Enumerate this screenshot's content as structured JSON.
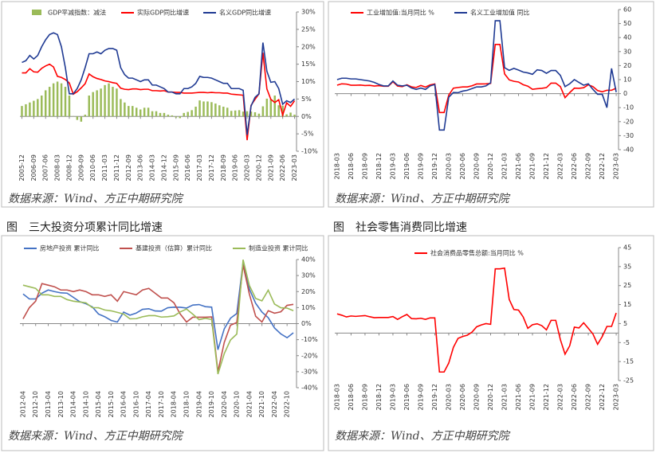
{
  "chart_data": [
    {
      "type": "combo",
      "source": "数据来源：Wind、方正中期研究院",
      "categories": [
        "2005-12",
        null,
        null,
        "2006-09",
        null,
        null,
        "2007-06",
        null,
        null,
        "2008-03",
        null,
        null,
        "2008-12",
        null,
        null,
        "2009-09",
        null,
        null,
        "2010-06",
        null,
        null,
        "2011-03",
        null,
        null,
        "2011-12",
        null,
        null,
        "2012-09",
        null,
        null,
        "2013-06",
        null,
        null,
        "2014-03",
        null,
        null,
        "2014-12",
        null,
        null,
        "2015-09",
        null,
        null,
        "2016-06",
        null,
        null,
        "2017-03",
        null,
        null,
        "2017-12",
        null,
        null,
        "2018-09",
        null,
        null,
        "2019-06",
        null,
        null,
        "2020-03",
        null,
        null,
        "2020-12",
        null,
        null,
        "2021-09",
        null,
        null,
        "2022-06",
        null,
        null,
        "2023-03"
      ],
      "ylim": [
        -10,
        30
      ],
      "yticks": [
        {
          "value": -10,
          "label": "-10%"
        },
        {
          "value": -5,
          "label": "-5%"
        },
        {
          "value": 0,
          "label": "0%"
        },
        {
          "value": 5,
          "label": "5%"
        },
        {
          "value": 10,
          "label": "10%"
        },
        {
          "value": 15,
          "label": "15%"
        },
        {
          "value": 20,
          "label": "20%"
        },
        {
          "value": 25,
          "label": "25%"
        },
        {
          "value": 30,
          "label": "30%"
        }
      ],
      "series": [
        {
          "name": "GDP平减指数：减法",
          "type": "bar",
          "color": "#9BBB59",
          "values": [
            3,
            3.5,
            4,
            4.5,
            5,
            6,
            7.5,
            8.5,
            9.5,
            10,
            9.5,
            8.5,
            6,
            0.1,
            -1,
            -1.5,
            0.5,
            6,
            7,
            7.5,
            8,
            9,
            9.5,
            8.5,
            8,
            5,
            4,
            3,
            3,
            2.5,
            2,
            2.5,
            2.5,
            1.5,
            1.5,
            1,
            1,
            0.5,
            0.3,
            -0.3,
            -0.5,
            1,
            1.3,
            1.8,
            2.8,
            4.6,
            4.3,
            4.3,
            4.1,
            3.7,
            3.2,
            2.8,
            2.5,
            1.6,
            1.7,
            1.8,
            1.4,
            1.5,
            1.4,
            1.2,
            0.8,
            2.9,
            5.1,
            4.9,
            6,
            3.2,
            3.1,
            0.6,
            1.1,
            0.5
          ]
        },
        {
          "name": "实际GDP同比增速",
          "type": "line",
          "color": "#FF0000",
          "values": [
            12.5,
            12.5,
            13.7,
            12.8,
            12.7,
            13.8,
            14.5,
            15,
            14.2,
            11.5,
            11.2,
            10.6,
            9.6,
            6.4,
            7.1,
            8.2,
            9.4,
            12.2,
            11.4,
            10.9,
            10.6,
            10.2,
            10,
            9.7,
            9.5,
            8.1,
            7.8,
            7.7,
            7.9,
            7.9,
            7.7,
            7.8,
            7.8,
            7.4,
            7.4,
            7.3,
            7.4,
            7,
            7,
            6.9,
            6.9,
            6.7,
            6.7,
            6.7,
            6.8,
            6.9,
            6.9,
            6.8,
            6.9,
            6.8,
            6.8,
            6.7,
            6.7,
            6.4,
            6.3,
            6.2,
            6.1,
            -6.8,
            3.2,
            4.9,
            6.5,
            18.3,
            7.9,
            4.9,
            4,
            4.8,
            0.4,
            3.9,
            2.9,
            4.5
          ]
        },
        {
          "name": "名义GDP同比增速",
          "type": "line",
          "color": "#1F3A93",
          "values": [
            15.5,
            16,
            17.5,
            16.5,
            17.5,
            20,
            22,
            23.5,
            24,
            23.5,
            20,
            14,
            6.5,
            6.5,
            8,
            10.5,
            14,
            18,
            18,
            18.5,
            18,
            19,
            19.5,
            19.5,
            19,
            14,
            12,
            11,
            11,
            10.5,
            10,
            10.5,
            10.5,
            9,
            9,
            8.5,
            8,
            7,
            7,
            6.5,
            6.5,
            8,
            8,
            8.5,
            9.5,
            11.5,
            11.2,
            11.2,
            11,
            10.5,
            10,
            9.5,
            9.5,
            8,
            8,
            8,
            7.5,
            -5.3,
            3,
            5.5,
            6.5,
            21.2,
            13,
            9.8,
            10,
            8,
            3.5,
            4.5,
            4,
            5
          ]
        }
      ]
    },
    {
      "type": "line",
      "source": "数据来源：Wind、方正中期研究院",
      "categories": [
        "2018-03",
        null,
        null,
        "2018-06",
        null,
        null,
        "2018-09",
        null,
        null,
        "2018-12",
        null,
        null,
        "2019-03",
        null,
        null,
        "2019-06",
        null,
        null,
        "2019-09",
        null,
        null,
        "2019-12",
        null,
        null,
        "2020-03",
        null,
        null,
        "2020-06",
        null,
        null,
        "2020-09",
        null,
        null,
        "2020-12",
        null,
        null,
        "2021-03",
        null,
        null,
        "2021-06",
        null,
        null,
        "2021-09",
        null,
        null,
        "2021-12",
        null,
        null,
        "2022-03",
        null,
        null,
        "2022-06",
        null,
        null,
        "2022-09",
        null,
        null,
        "2022-12",
        null,
        null,
        "2023-03"
      ],
      "ylim": [
        -40,
        60
      ],
      "yticks": [
        -40,
        -30,
        -20,
        -10,
        0,
        10,
        20,
        30,
        40,
        50,
        60
      ],
      "series": [
        {
          "name": "工业增加值:当月同比 %",
          "color": "#FF0000",
          "values": [
            6,
            7,
            6.8,
            6,
            6,
            6.1,
            5.8,
            5.9,
            5.4,
            5.7,
            5.3,
            5.3,
            8.5,
            5.4,
            5,
            6.3,
            4.8,
            4.4,
            5.8,
            4.7,
            6.2,
            6.9,
            -13.5,
            -13.5,
            -1.1,
            3.9,
            4.4,
            4.8,
            4.8,
            5.6,
            6.9,
            6.9,
            7,
            7.3,
            35.1,
            35.1,
            14.1,
            9.8,
            8.8,
            8.3,
            6.4,
            5.3,
            3.1,
            3.5,
            3.8,
            4.3,
            7.5,
            7.5,
            5,
            -2.9,
            0.7,
            3.9,
            3.8,
            4.2,
            6.3,
            5,
            2.2,
            1.3,
            2.4,
            2.4,
            3.9
          ]
        },
        {
          "name": "名义工业增加值 同比",
          "color": "#1F3A93",
          "values": [
            10,
            11,
            11,
            10.5,
            10.5,
            10,
            9.5,
            9,
            8,
            6.5,
            5.5,
            5.5,
            9,
            6,
            5.5,
            6,
            4,
            3,
            4,
            3,
            5.5,
            6.5,
            -26,
            -26,
            -2.5,
            0.8,
            0.7,
            1.8,
            2.4,
            3.6,
            4.8,
            4.8,
            5.5,
            7.7,
            52,
            52,
            18.5,
            16.6,
            18,
            16.8,
            15.4,
            14.8,
            13.8,
            17,
            16.5,
            14.5,
            16.5,
            16.5,
            13,
            5,
            7,
            10,
            8,
            6,
            7,
            3,
            -0.5,
            -0.5,
            -10,
            18,
            1
          ]
        }
      ]
    },
    {
      "type": "line",
      "title": "图　三大投资分项累计同比增速",
      "source": "数据来源：Wind、方正中期研究院",
      "categories": [
        "2012-04",
        null,
        "2012-10",
        null,
        "2013-04",
        null,
        "2013-10",
        null,
        "2014-04",
        null,
        "2014-10",
        null,
        "2015-04",
        null,
        "2015-10",
        null,
        "2016-04",
        null,
        "2016-10",
        null,
        "2017-04",
        null,
        "2017-10",
        null,
        "2018-04",
        null,
        "2018-10",
        null,
        "2019-04",
        null,
        "2019-10",
        null,
        "2020-04",
        null,
        "2020-10",
        null,
        "2021-04",
        null,
        "2021-10",
        null,
        "2022-04",
        null,
        "2022-10",
        null
      ],
      "ylim": [
        -40,
        40
      ],
      "yticks": [
        {
          "value": -40,
          "label": "-40%"
        },
        {
          "value": -30,
          "label": "-30%"
        },
        {
          "value": -20,
          "label": "-20%"
        },
        {
          "value": -10,
          "label": "-10%"
        },
        {
          "value": 0,
          "label": "0%"
        },
        {
          "value": 10,
          "label": "10%"
        },
        {
          "value": 20,
          "label": "20%"
        },
        {
          "value": 30,
          "label": "30%"
        },
        {
          "value": 40,
          "label": "40%"
        }
      ],
      "series": [
        {
          "name": "房地产投资 累计同比",
          "color": "#4472C4",
          "values": [
            18.5,
            15.4,
            15.4,
            19,
            21,
            20,
            19.2,
            19,
            16.4,
            13.7,
            12.4,
            10.5,
            6,
            4.3,
            2,
            1,
            7.2,
            5.3,
            6.6,
            8.9,
            9.3,
            7.9,
            7.8,
            9.9,
            10.3,
            10.2,
            9.7,
            11.6,
            11.9,
            10.6,
            10.3,
            -16.3,
            -3.3,
            3.4,
            6.3,
            38.3,
            21.6,
            12.7,
            7.2,
            3.7,
            -2.7,
            -6.4,
            -8.8,
            -5.7
          ]
        },
        {
          "name": "基建投资（估算）累计同比",
          "color": "#C0504D",
          "values": [
            3,
            10,
            14,
            25,
            24,
            23,
            21,
            21,
            20,
            21,
            20,
            18,
            18,
            17,
            18,
            14,
            20,
            19,
            18,
            21,
            22,
            19,
            16,
            16,
            13,
            6,
            1,
            4,
            4,
            4,
            4.2,
            -30,
            -11.8,
            -1,
            0.7,
            36.6,
            18.4,
            4.6,
            1,
            8.1,
            6.5,
            7.4,
            11.4,
            12
          ]
        },
        {
          "name": "制造业投资 累计同比",
          "color": "#9BBB59",
          "values": [
            24,
            23,
            22,
            18,
            18,
            17,
            17,
            15,
            14,
            13.5,
            13,
            10,
            9.9,
            8.5,
            8,
            7,
            6,
            3,
            3.1,
            4.3,
            5,
            5,
            4.1,
            4.3,
            4.8,
            7.3,
            9.1,
            5.9,
            2.5,
            3.3,
            2.6,
            -31.5,
            -18.8,
            -10.2,
            -6.5,
            39.9,
            23.8,
            15.7,
            14.2,
            20.9,
            12.2,
            9.9,
            9.7,
            8.1
          ]
        }
      ]
    },
    {
      "type": "line",
      "title": "图　社会零售消费同比增速",
      "source": "数据来源：Wind、方正中期研究院",
      "categories": [
        "2018-03",
        null,
        null,
        "2018-06",
        null,
        null,
        "2018-09",
        null,
        null,
        "2018-12",
        null,
        null,
        "2019-03",
        null,
        null,
        "2019-06",
        null,
        null,
        "2019-09",
        null,
        null,
        "2019-12",
        null,
        null,
        "2020-03",
        null,
        null,
        "2020-06",
        null,
        null,
        "2020-09",
        null,
        null,
        "2020-12",
        null,
        null,
        "2021-03",
        null,
        null,
        "2021-06",
        null,
        null,
        "2021-09",
        null,
        null,
        "2021-12",
        null,
        null,
        "2022-03",
        null,
        null,
        "2022-06",
        null,
        null,
        "2022-09",
        null,
        null,
        "2022-12",
        null,
        null,
        "2023-03"
      ],
      "ylim": [
        -25,
        45
      ],
      "yticks": [
        -25,
        -15,
        -5,
        5,
        15,
        25,
        35,
        45
      ],
      "series": [
        {
          "name": "社会消费品零售总额:当月同比 %",
          "color": "#FF0000",
          "values": [
            10.1,
            9.4,
            8.5,
            9,
            8.8,
            9,
            9.2,
            8.6,
            8.1,
            8.2,
            8.2,
            8.2,
            8.7,
            7.2,
            8.6,
            9.8,
            7.6,
            7.5,
            7.8,
            7.2,
            8,
            8,
            -20.5,
            -20.5,
            -15.8,
            -7.5,
            -2.8,
            -1.8,
            -1.1,
            0.5,
            3.3,
            4.3,
            5,
            4.6,
            33.8,
            33.8,
            34.2,
            17.7,
            12.4,
            12.1,
            8.5,
            2.5,
            4.4,
            4.9,
            3.9,
            1.7,
            6.7,
            6.7,
            -3.5,
            -11.1,
            -6.7,
            3.1,
            2.7,
            5.4,
            2.5,
            -0.5,
            -5.9,
            -1.8,
            3.5,
            3.5,
            10.6
          ]
        }
      ]
    }
  ]
}
